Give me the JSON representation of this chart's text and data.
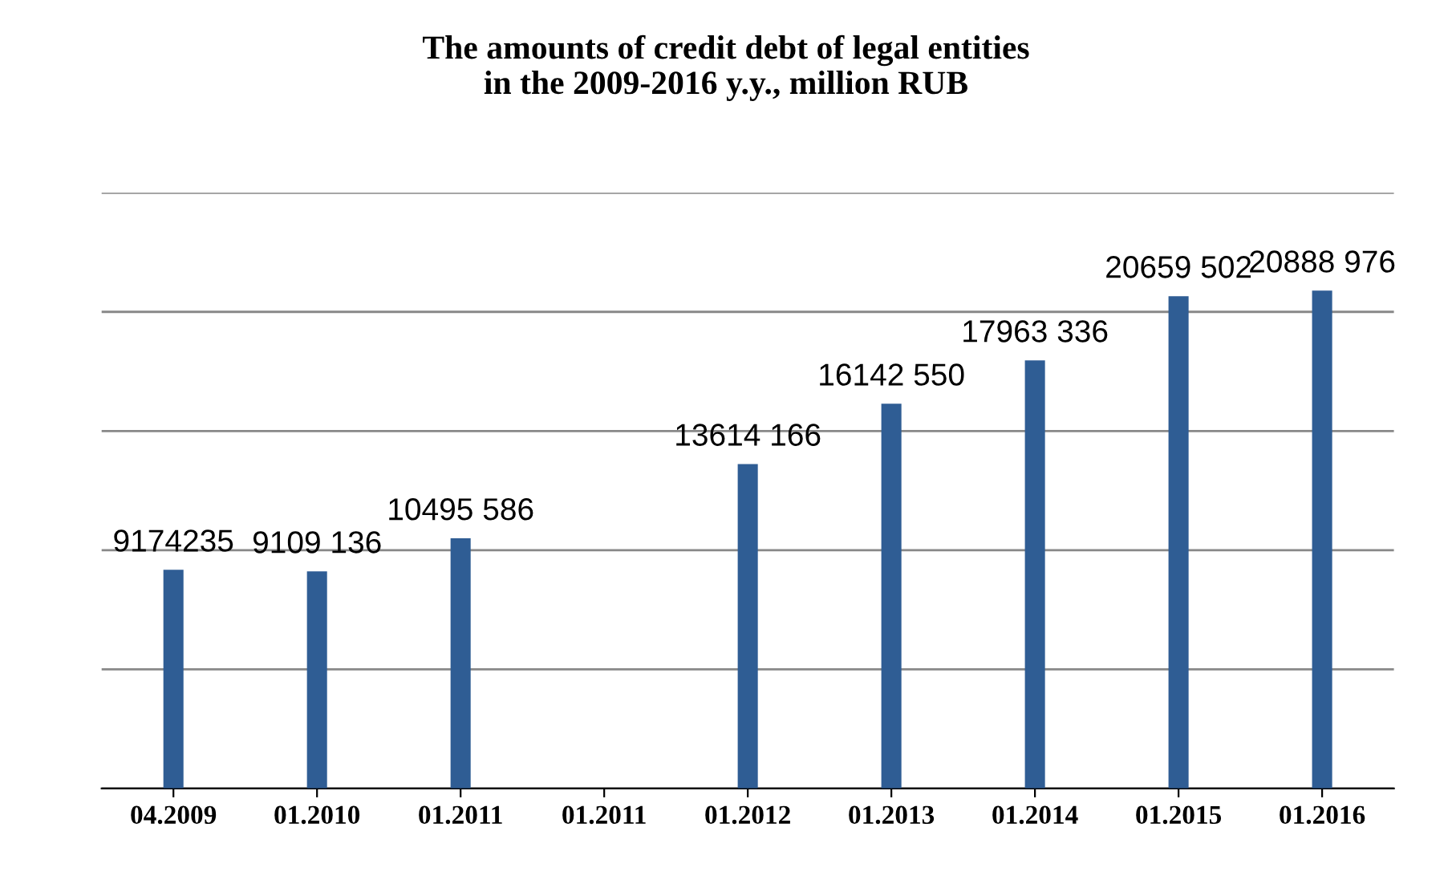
{
  "chart_data": {
    "type": "bar",
    "title": "The amounts of credit debt of legal entities\nin the 2009-2016 y.y., million RUB",
    "categories": [
      "04.2009",
      "01.2010",
      "01.2011",
      "01.2011",
      "01.2012",
      "01.2013",
      "01.2014",
      "01.2015",
      "01.2016"
    ],
    "values": [
      9174235,
      9109136,
      10495586,
      null,
      13614166,
      16142550,
      17963336,
      20659502,
      20888976
    ],
    "value_labels": [
      "9174235",
      "9109 136",
      "10495 586",
      null,
      "13614 166",
      "16142 550",
      "17963 336",
      "20659 502",
      "20888 976"
    ],
    "color": "#2f5d94",
    "ylim": [
      0,
      25000000
    ],
    "yticks": [
      {
        "value": 0,
        "label": null
      },
      {
        "value": 5000000,
        "label": null
      },
      {
        "value": 10000000,
        "label": null
      },
      {
        "value": 15000000,
        "label": null
      },
      {
        "value": 20000000,
        "label": null
      },
      {
        "value": 25000000,
        "label": null
      }
    ],
    "grid": "y",
    "tick_labels": "x"
  }
}
